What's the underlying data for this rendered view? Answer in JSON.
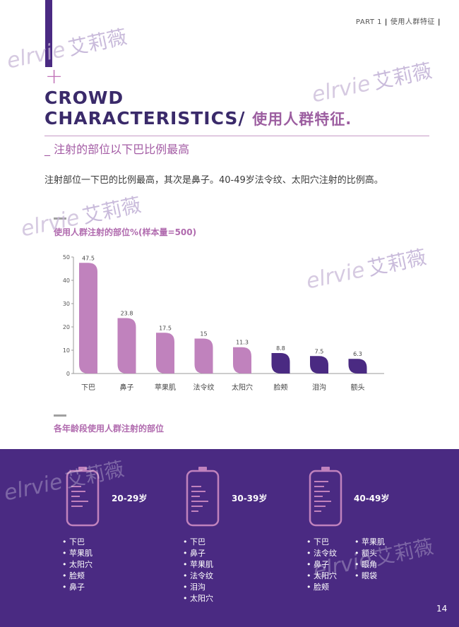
{
  "header": {
    "part": "PART 1",
    "section": "使用人群特征"
  },
  "title": {
    "line1": "CROWD",
    "line2": "CHARACTERISTICS/",
    "cn": "使用人群特征."
  },
  "subtitle": "_ 注射的部位以下巴比例最高",
  "body": "注射部位一下巴的比例最高，其次是鼻子。40-49岁法令纹、太阳穴注射的比例高。",
  "chart_title": "使用人群注射的部位%(样本量=500)",
  "chart_data": {
    "type": "bar",
    "categories": [
      "下巴",
      "鼻子",
      "苹果肌",
      "法令纹",
      "太阳穴",
      "脸颊",
      "泪沟",
      "额头"
    ],
    "values": [
      47.5,
      23.8,
      17.5,
      15,
      11.3,
      8.8,
      7.5,
      6.3
    ],
    "ylim": [
      0,
      50
    ],
    "yticks": [
      0,
      10,
      20,
      30,
      40,
      50
    ],
    "colors": [
      "#c082bd",
      "#c082bd",
      "#c082bd",
      "#c082bd",
      "#c082bd",
      "#4a2a82",
      "#4a2a82",
      "#4a2a82"
    ]
  },
  "section_title": "各年龄段使用人群注射的部位",
  "groups": [
    {
      "age": "20-29岁",
      "items": [
        "下巴",
        "苹果肌",
        "太阳穴",
        "脸颊",
        "鼻子"
      ]
    },
    {
      "age": "30-39岁",
      "items": [
        "下巴",
        "鼻子",
        "苹果肌",
        "法令纹",
        "泪沟",
        "太阳穴"
      ]
    },
    {
      "age": "40-49岁",
      "items": [
        "下巴",
        "法令纹",
        "鼻子",
        "太阳穴",
        "脸颊"
      ],
      "items2": [
        "苹果肌",
        "额头",
        "眼角",
        "眼袋"
      ]
    }
  ],
  "page_number": "14",
  "watermark": {
    "en": "elrvie",
    "zh": "艾莉薇"
  },
  "colors": {
    "primary": "#4a2a82",
    "accent": "#c082bd"
  }
}
